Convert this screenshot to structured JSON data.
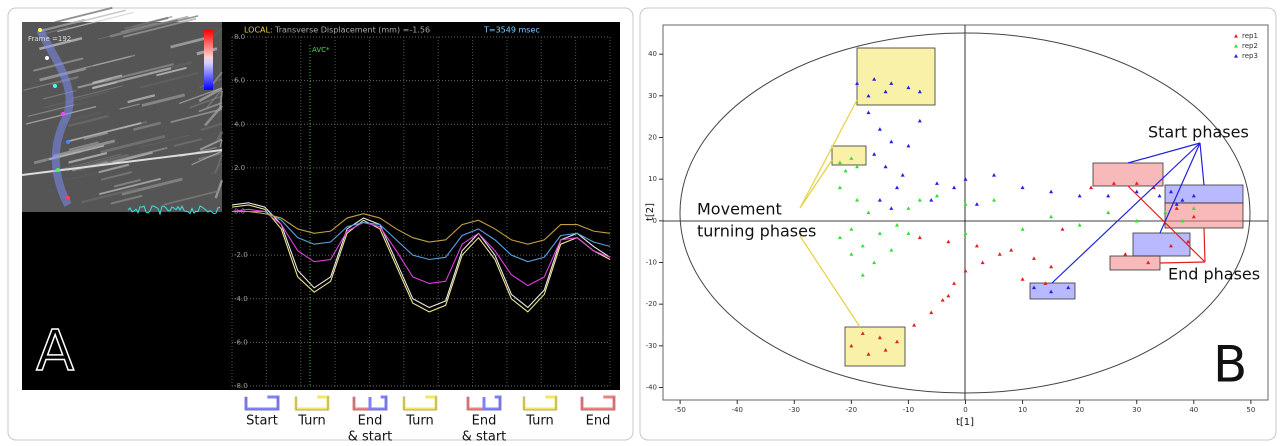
{
  "chart_data": [
    {
      "type": "line",
      "panel_label": "A",
      "frame_label": "Frame =192",
      "header_label": "LOCAL:",
      "title": "Transverse Displacement (mm) =-1.56",
      "time_label": "T=3549 msec",
      "annotation": "AVC*",
      "ylim": [
        -8,
        8
      ],
      "yticks": [
        {
          "value": 8,
          "label": "8.0"
        },
        {
          "value": 6,
          "label": "6.0"
        },
        {
          "value": 4,
          "label": "4.0"
        },
        {
          "value": 2,
          "label": "2.0"
        },
        {
          "value": 0,
          "label": "0.0"
        },
        {
          "value": -2,
          "label": "-2.0"
        },
        {
          "value": -4,
          "label": "-4.0"
        },
        {
          "value": -6,
          "label": "-6.0"
        },
        {
          "value": -8,
          "label": "-8.0"
        }
      ],
      "grid": true,
      "series": [
        {
          "color": "#f0e68c",
          "values": [
            0.2,
            0.3,
            0.1,
            -0.8,
            -3.0,
            -3.7,
            -3.2,
            -1.0,
            -0.4,
            -0.8,
            -2.5,
            -4.2,
            -4.6,
            -4.3,
            -2.0,
            -1.2,
            -2.2,
            -4.0,
            -4.6,
            -3.8,
            -1.5,
            -1.2,
            -1.8,
            -2.2
          ]
        },
        {
          "color": "#e8e8e8",
          "values": [
            0.3,
            0.4,
            0.2,
            -0.6,
            -2.7,
            -3.5,
            -3.0,
            -0.8,
            -0.3,
            -0.6,
            -2.3,
            -4.0,
            -4.4,
            -4.1,
            -1.8,
            -1.0,
            -2.0,
            -3.8,
            -4.4,
            -3.6,
            -1.3,
            -1.0,
            -1.6,
            -2.1
          ]
        },
        {
          "color": "#e040e0",
          "values": [
            0.0,
            0.1,
            0.0,
            -0.6,
            -1.8,
            -2.3,
            -2.2,
            -0.9,
            -0.5,
            -0.7,
            -1.8,
            -3.0,
            -3.3,
            -3.2,
            -1.5,
            -1.0,
            -1.8,
            -2.9,
            -3.4,
            -3.0,
            -1.3,
            -1.2,
            -1.8,
            -2.1
          ]
        },
        {
          "color": "#5aa0e0",
          "values": [
            0.0,
            0.0,
            0.0,
            -0.4,
            -1.2,
            -1.5,
            -1.4,
            -0.7,
            -0.5,
            -0.6,
            -1.3,
            -2.0,
            -2.2,
            -2.1,
            -1.1,
            -0.8,
            -1.3,
            -2.0,
            -2.3,
            -2.1,
            -1.1,
            -1.0,
            -1.4,
            -1.6
          ]
        },
        {
          "color": "#c0a040",
          "values": [
            0.0,
            0.0,
            -0.1,
            -0.3,
            -0.8,
            -1.0,
            -0.9,
            -0.3,
            -0.1,
            -0.3,
            -0.8,
            -1.2,
            -1.4,
            -1.3,
            -0.6,
            -0.4,
            -0.8,
            -1.3,
            -1.5,
            -1.3,
            -0.6,
            -0.6,
            -0.9,
            -1.0
          ]
        }
      ],
      "phases": [
        {
          "lines": [
            "Start"
          ],
          "colors": [
            "#8080ff"
          ]
        },
        {
          "lines": [
            "Turn"
          ],
          "colors": [
            "#f5e663"
          ]
        },
        {
          "lines": [
            "End",
            "& start"
          ],
          "colors": [
            "#f08080",
            "#8080ff"
          ]
        },
        {
          "lines": [
            "Turn"
          ],
          "colors": [
            "#f5e663"
          ]
        },
        {
          "lines": [
            "End",
            "& start"
          ],
          "colors": [
            "#f08080",
            "#8080ff"
          ]
        },
        {
          "lines": [
            "Turn"
          ],
          "colors": [
            "#f5e663"
          ]
        },
        {
          "lines": [
            "End"
          ],
          "colors": [
            "#f08080"
          ]
        }
      ]
    },
    {
      "type": "scatter",
      "panel_label": "B",
      "xlabel": "t[1]",
      "ylabel": "t[2]",
      "xlim": [
        -53,
        53
      ],
      "ylim": [
        -43,
        47
      ],
      "xticks": [
        -50,
        -40,
        -30,
        -20,
        -10,
        0,
        10,
        20,
        30,
        40,
        50
      ],
      "yticks": [
        -40,
        -30,
        -20,
        -10,
        0,
        10,
        20,
        30,
        40
      ],
      "legend": "top-right",
      "annotations": {
        "start": "Start phases",
        "end": "End phases",
        "turning": [
          "Movement",
          "turning phases"
        ]
      },
      "series": [
        {
          "name": "rep1",
          "color": "#e02020",
          "x": [
            -20,
            -17,
            -14,
            -18,
            -15,
            -12,
            -9,
            -6,
            -4,
            -2,
            0,
            3,
            6,
            -3,
            -8,
            -3,
            2,
            8,
            12,
            15,
            10,
            14,
            22,
            26,
            30,
            33,
            37,
            40,
            28,
            32,
            36,
            39,
            17
          ],
          "y": [
            -30,
            -32,
            -31,
            -27,
            -28,
            -29,
            -25,
            -22,
            -19,
            -15,
            -12,
            -10,
            -8,
            -18,
            -4,
            -5,
            -6,
            -7,
            -9,
            -11,
            -14,
            -15,
            8,
            9,
            9,
            8,
            3,
            1,
            -8,
            -10,
            -6,
            -5,
            -2
          ]
        },
        {
          "name": "rep2",
          "color": "#30e030",
          "x": [
            -22,
            -20,
            -19,
            -21,
            -22,
            -19,
            -17,
            -20,
            -22,
            -18,
            -15,
            -12,
            -10,
            -8,
            -5,
            0,
            5,
            -20,
            -16,
            -13,
            -18,
            -10,
            0,
            10,
            20,
            30,
            35,
            40,
            38,
            25,
            15
          ],
          "y": [
            14,
            15,
            13,
            12,
            8,
            5,
            2,
            -2,
            -4,
            -6,
            -3,
            -1,
            3,
            5,
            6,
            4,
            5,
            -8,
            -10,
            -7,
            -13,
            -3,
            -3,
            -2,
            -1,
            0,
            2,
            3,
            0,
            2,
            1
          ]
        },
        {
          "name": "rep3",
          "color": "#2020e0",
          "x": [
            -19,
            -16,
            -13,
            -10,
            -8,
            -17,
            -14,
            -17,
            -15,
            -13,
            -16,
            -14,
            -11,
            -12,
            -15,
            -13,
            -8,
            -10,
            -5,
            0,
            5,
            10,
            15,
            20,
            25,
            30,
            -6,
            2,
            -2,
            34,
            36,
            38,
            40,
            37,
            12,
            15,
            18
          ],
          "y": [
            33,
            34,
            33,
            32,
            31,
            30,
            31,
            26,
            22,
            19,
            16,
            13,
            11,
            8,
            5,
            3,
            24,
            18,
            9,
            10,
            11,
            8,
            7,
            6,
            6,
            7,
            5,
            4,
            8,
            6,
            7,
            5,
            6,
            4,
            -16,
            -17,
            -16
          ]
        }
      ]
    }
  ]
}
